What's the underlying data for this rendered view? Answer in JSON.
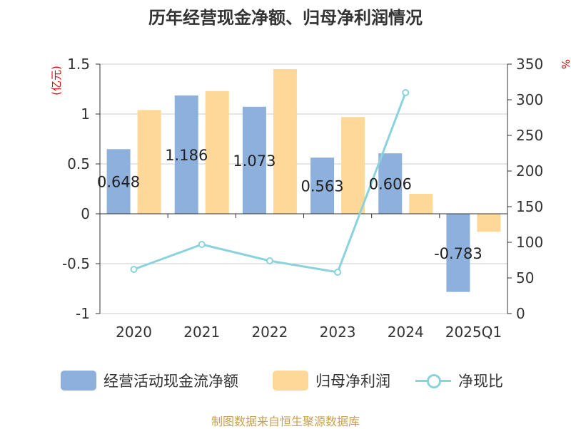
{
  "title": "历年经营现金净额、归母净利润情况",
  "footer": "制图数据来自恒生聚源数据库",
  "colors": {
    "cash": "#8eb0dc",
    "profit": "#fdd898",
    "ratio": "#8ad3dc",
    "unit": "#e60000",
    "axis": "#333333",
    "grid": "#cccccc",
    "footer": "#c8a050"
  },
  "legend": {
    "cash": "经营活动现金流净额",
    "profit": "归母净利润",
    "ratio": "净现比"
  },
  "chart_data": {
    "type": "bar",
    "title": "历年经营现金净额、归母净利润情况",
    "categories": [
      "2020",
      "2021",
      "2022",
      "2023",
      "2024",
      "2025Q1"
    ],
    "y_left": {
      "label": "(亿元)",
      "range": [
        -1,
        1.5
      ],
      "ticks": [
        "1.5",
        "1",
        "0.5",
        "0",
        "-0.5",
        "-1"
      ]
    },
    "y_right": {
      "label": "%",
      "range": [
        0,
        350
      ],
      "ticks": [
        "350",
        "300",
        "250",
        "200",
        "150",
        "100",
        "50",
        "0"
      ]
    },
    "series": [
      {
        "name": "经营活动现金流净额",
        "type": "bar",
        "axis": "left",
        "values": [
          0.648,
          1.186,
          1.073,
          0.563,
          0.606,
          -0.783
        ],
        "labels": [
          "0.648",
          "1.186",
          "1.073",
          "0.563",
          "0.606",
          "-0.783"
        ]
      },
      {
        "name": "归母净利润",
        "type": "bar",
        "axis": "left",
        "values": [
          1.04,
          1.23,
          1.45,
          0.97,
          0.2,
          -0.18
        ]
      },
      {
        "name": "净现比",
        "type": "line",
        "axis": "right",
        "values": [
          62,
          97,
          74,
          58,
          310,
          null
        ]
      }
    ],
    "grid": true,
    "legend_position": "bottom"
  }
}
